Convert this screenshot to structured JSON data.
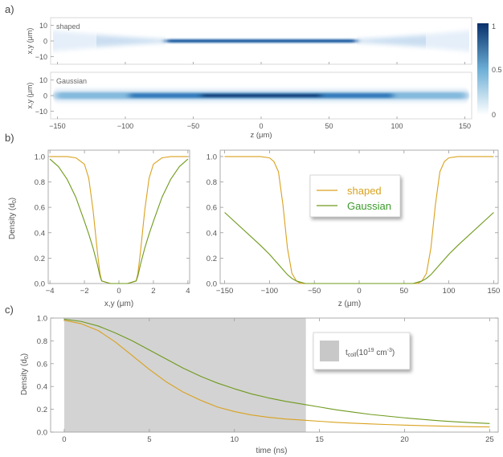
{
  "chart_data": [
    {
      "panel": "a)",
      "type": "heatmap",
      "x": [
        -155,
        155
      ],
      "y": [
        -15,
        15
      ],
      "xticks": [
        -150,
        -100,
        -50,
        0,
        50,
        100,
        150
      ],
      "yticks": [
        10,
        0,
        -10
      ],
      "xlabel": "z (μm)",
      "ylabel": "x,y (μm)",
      "color_low": "#ffffff",
      "color_high": "#08306b",
      "colorbar": {
        "ticks": [
          1,
          0.5,
          0
        ]
      },
      "maps": [
        {
          "label": "shaped",
          "name": "shaped"
        },
        {
          "label": "Gaussian",
          "name": "Gaussian"
        }
      ]
    },
    {
      "panel": "b)",
      "type": "line",
      "xlabel": "x,y (μm)",
      "ylabel": "Density (d0)",
      "xlim": [
        -4.1,
        4.1
      ],
      "ylim": [
        0,
        1.05
      ],
      "xticks": [
        -4,
        -2,
        0,
        2,
        4
      ],
      "yticks": [
        0.0,
        0.2,
        0.4,
        0.6,
        0.8,
        1.0
      ],
      "x": [
        -4,
        -3.5,
        -3,
        -2.5,
        -2,
        -1.75,
        -1.5,
        -1.25,
        -1.1,
        -1,
        -0.5,
        0,
        0.5,
        1,
        1.1,
        1.25,
        1.5,
        1.75,
        2,
        2.5,
        3,
        3.5,
        4
      ],
      "series": [
        {
          "name": "shaped",
          "color": "#d9a21f",
          "values": [
            1.0,
            1.0,
            1.0,
            0.99,
            0.94,
            0.83,
            0.58,
            0.25,
            0.08,
            0.02,
            0,
            0,
            0,
            0.02,
            0.08,
            0.25,
            0.58,
            0.83,
            0.94,
            0.99,
            1.0,
            1.0,
            1.0
          ]
        },
        {
          "name": "Gaussian",
          "color": "#6f9a1d",
          "values": [
            0.98,
            0.92,
            0.82,
            0.68,
            0.49,
            0.39,
            0.28,
            0.15,
            0.06,
            0.02,
            0,
            0,
            0,
            0.02,
            0.06,
            0.15,
            0.28,
            0.39,
            0.49,
            0.68,
            0.82,
            0.92,
            0.98
          ]
        }
      ]
    },
    {
      "panel": "",
      "type": "line",
      "xlabel": "z (μm)",
      "xlim": [
        -155,
        155
      ],
      "ylim": [
        0,
        1.05
      ],
      "xticks": [
        -150,
        -100,
        -50,
        0,
        50,
        100,
        150
      ],
      "yticks": [
        0.0,
        0.2,
        0.4,
        0.6,
        0.8,
        1.0
      ],
      "x": [
        -150,
        -110,
        -100,
        -95,
        -90,
        -85,
        -80,
        -75,
        -70,
        -65,
        -60,
        -50,
        0,
        50,
        60,
        65,
        70,
        75,
        80,
        85,
        90,
        95,
        100,
        110,
        150
      ],
      "legend": [
        "shaped",
        "Gaussian"
      ],
      "series": [
        {
          "name": "shaped",
          "color": "#d9a21f",
          "values": [
            1.0,
            1.0,
            0.99,
            0.96,
            0.88,
            0.62,
            0.28,
            0.08,
            0.02,
            0,
            0,
            0,
            0,
            0,
            0,
            0,
            0.02,
            0.08,
            0.28,
            0.62,
            0.88,
            0.96,
            0.99,
            1.0,
            1.0
          ]
        },
        {
          "name": "Gaussian",
          "color": "#6f9a1d",
          "values": [
            0.56,
            0.3,
            0.23,
            0.19,
            0.15,
            0.11,
            0.07,
            0.04,
            0.02,
            0.01,
            0,
            0,
            0,
            0,
            0,
            0.01,
            0.02,
            0.04,
            0.07,
            0.11,
            0.15,
            0.19,
            0.23,
            0.3,
            0.56
          ]
        }
      ]
    },
    {
      "panel": "c)",
      "type": "line",
      "xlabel": "time (ns)",
      "ylabel": "Density (d0)",
      "xlim": [
        -0.8,
        25.5
      ],
      "ylim": [
        0,
        1.0
      ],
      "xticks": [
        0,
        5,
        10,
        15,
        20,
        25
      ],
      "yticks": [
        0.0,
        0.2,
        0.4,
        0.6,
        0.8,
        1.0
      ],
      "shaded_region": {
        "x": [
          0,
          14.2
        ],
        "color": "#d3d3d3",
        "legend": "t_coll(10^19 cm^-3)"
      },
      "x": [
        0,
        1,
        2,
        3,
        4,
        5,
        6,
        7,
        8,
        9,
        10,
        11,
        12,
        13,
        14,
        15,
        16,
        17,
        18,
        19,
        20,
        21,
        22,
        23,
        24,
        25
      ],
      "series": [
        {
          "name": "shaped",
          "color": "#d9a21f",
          "values": [
            0.98,
            0.95,
            0.89,
            0.79,
            0.67,
            0.55,
            0.44,
            0.35,
            0.28,
            0.22,
            0.18,
            0.15,
            0.13,
            0.115,
            0.105,
            0.095,
            0.085,
            0.078,
            0.072,
            0.066,
            0.061,
            0.057,
            0.053,
            0.05,
            0.047,
            0.045
          ]
        },
        {
          "name": "Gaussian",
          "color": "#6f9a1d",
          "values": [
            0.99,
            0.97,
            0.93,
            0.87,
            0.8,
            0.72,
            0.64,
            0.56,
            0.49,
            0.43,
            0.38,
            0.335,
            0.3,
            0.27,
            0.245,
            0.22,
            0.195,
            0.175,
            0.155,
            0.14,
            0.125,
            0.112,
            0.1,
            0.09,
            0.082,
            0.075
          ]
        }
      ]
    }
  ],
  "legend_c": {
    "main": "t",
    "sub": "coll",
    "rest": "(10",
    "sup1": "19",
    "unit": " cm",
    "sup2": "-3",
    "close": ")"
  },
  "density_label": {
    "main": "Density (d",
    "sub": "0",
    "close": ")"
  }
}
